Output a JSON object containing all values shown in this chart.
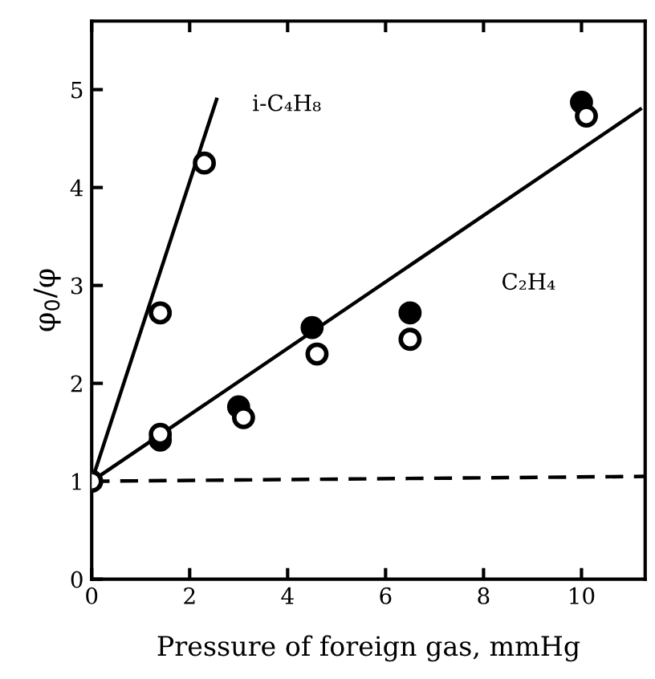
{
  "chart_data": {
    "type": "scatter",
    "xlabel": "Pressure of foreign gas, mmHg",
    "ylabel": "φ$_{0}$/φ",
    "xlim": [
      0,
      11.3
    ],
    "ylim": [
      0,
      5.7
    ],
    "xticks": [
      0,
      2,
      4,
      6,
      8,
      10
    ],
    "yticks": [
      0,
      1,
      2,
      3,
      4,
      5
    ],
    "grid": false,
    "marker": "circle",
    "series": [
      {
        "type": "line",
        "color": "#000000",
        "line_style": "solid",
        "marker": "none",
        "x": [
          0,
          2.55
        ],
        "values": [
          1,
          4.9
        ]
      },
      {
        "type": "line",
        "color": "#000000",
        "line_style": "solid",
        "marker": "none",
        "x": [
          0,
          11.2
        ],
        "values": [
          1,
          4.8
        ]
      },
      {
        "type": "line",
        "color": "#000000",
        "line_style": "dashed",
        "marker": "none",
        "x": [
          0,
          11.3
        ],
        "values": [
          1,
          1.05
        ]
      },
      {
        "color": "#000000",
        "x": [
          1.4,
          3.0,
          4.5,
          6.5,
          10.0
        ],
        "values": [
          1.42,
          1.76,
          2.57,
          2.72,
          4.87
        ]
      },
      {
        "color": "#ffffff",
        "x": [
          0,
          1.4,
          2.3,
          1.4,
          3.1,
          4.6,
          6.5,
          10.1
        ],
        "values": [
          1,
          2.72,
          4.25,
          1.48,
          1.65,
          2.3,
          2.45,
          4.73
        ]
      }
    ],
    "annotations": [
      "i-C₄H₈",
      "C₂H₄"
    ]
  }
}
